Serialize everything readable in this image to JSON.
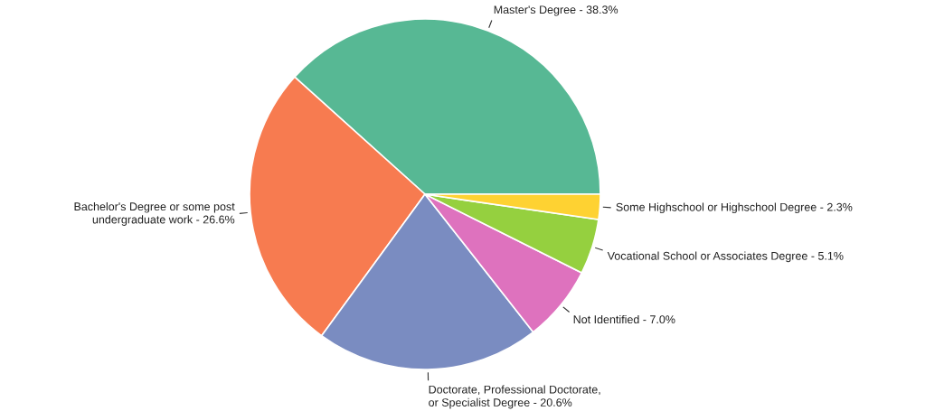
{
  "chart_data": {
    "type": "pie",
    "categories": [
      "Master's Degree - 38.3%",
      "Bachelor's Degree or some post\nundergraduate work - 26.6%",
      "Doctorate, Professional Doctorate,\nor Specialist Degree - 20.6%",
      "Not Identified - 7.0%",
      "Vocational School or Associates Degree - 5.1%",
      "Some Highschool or Highschool Degree - 2.3%"
    ],
    "values": [
      38.3,
      26.6,
      20.6,
      7.0,
      5.1,
      2.3
    ],
    "colors": [
      "#57b894",
      "#f77b50",
      "#7a8cc1",
      "#de72be",
      "#95d03f",
      "#fed232"
    ],
    "legend": false
  }
}
